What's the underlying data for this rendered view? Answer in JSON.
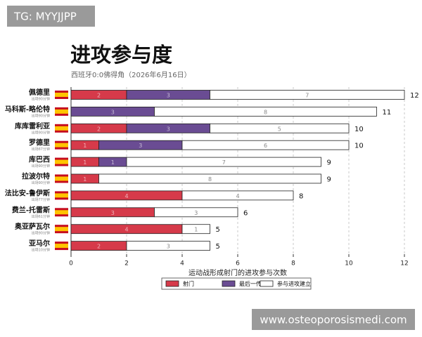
{
  "watermarks": [
    "TG: MYYJJPP",
    "www.osteoporosismedi.com"
  ],
  "chart_data": {
    "type": "stacked-barh",
    "title": "进攻参与度",
    "subtitle": "西班牙0:0佛得角（2026年6月16日）",
    "xlabel": "运动战形成射门的进攻参与次数",
    "categories": [
      "佩德里",
      "马科斯-略伦特",
      "库库雷利亚",
      "罗德里",
      "库巴西",
      "拉波尔特",
      "法比安-鲁伊斯",
      "费兰-托雷斯",
      "奥亚萨瓦尔",
      "亚马尔"
    ],
    "category_notes": [
      "出场90分钟",
      "出场90分钟",
      "出场90分钟",
      "出场87分钟",
      "出场90分钟",
      "出场90分钟",
      "出场77分钟",
      "出场61分钟",
      "出场90分钟",
      "出场10分钟"
    ],
    "series": [
      {
        "name": "射门",
        "color": "#d63a4a",
        "values": [
          2,
          0,
          2,
          1,
          1,
          1,
          4,
          3,
          4,
          2
        ]
      },
      {
        "name": "最后一传",
        "color": "#6a4c93",
        "values": [
          3,
          3,
          3,
          3,
          1,
          0,
          0,
          0,
          0,
          0
        ]
      },
      {
        "name": "参与进攻建立",
        "color": "#ffffff",
        "values": [
          7,
          8,
          5,
          6,
          7,
          8,
          4,
          3,
          1,
          3
        ]
      }
    ],
    "totals": [
      12,
      11,
      10,
      10,
      9,
      9,
      8,
      6,
      5,
      5
    ],
    "xlim": [
      0,
      12
    ],
    "xticks": [
      0,
      2,
      4,
      6,
      8,
      10,
      12
    ],
    "grid": true
  }
}
